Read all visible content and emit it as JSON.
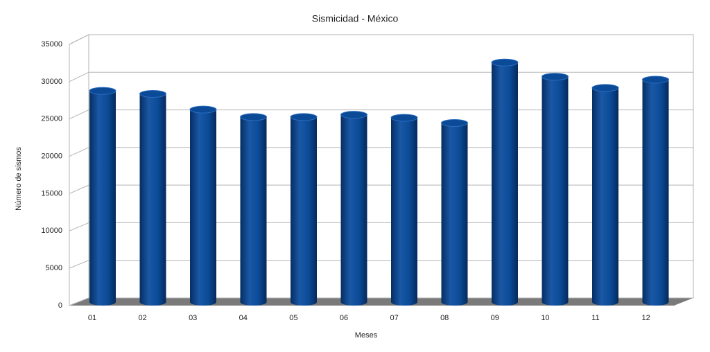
{
  "chart_data": {
    "type": "bar3d",
    "title": "Sismicidad - México",
    "x_label": "Meses",
    "y_label": "Número de sismos",
    "categories": [
      "01",
      "02",
      "03",
      "04",
      "05",
      "06",
      "07",
      "08",
      "09",
      "10",
      "11",
      "12"
    ],
    "values": [
      28300,
      27900,
      25800,
      24800,
      24800,
      25100,
      24700,
      24000,
      32100,
      30200,
      28700,
      29800
    ],
    "color": "#0b4a96",
    "ylim": [
      0,
      35000
    ],
    "yticks": [
      0,
      5000,
      10000,
      15000,
      20000,
      25000,
      30000,
      35000
    ],
    "grid": true
  }
}
